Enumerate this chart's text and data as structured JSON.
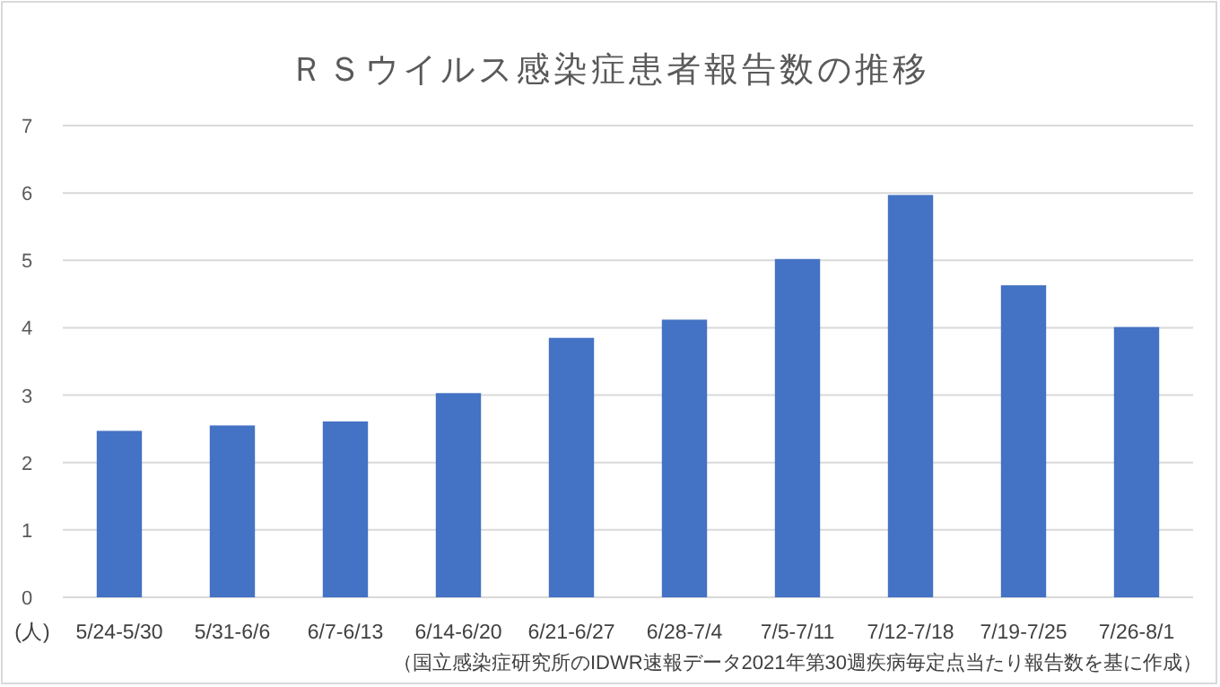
{
  "chart_data": {
    "type": "bar",
    "title": "ＲＳウイルス感染症患者報告数の推移",
    "ylabel": "(人)",
    "categories": [
      "5/24-5/30",
      "5/31-6/6",
      "6/7-6/13",
      "6/14-6/20",
      "6/21-6/27",
      "6/28-7/4",
      "7/5-7/11",
      "7/12-7/18",
      "7/19-7/25",
      "7/26-8/1"
    ],
    "values": [
      2.47,
      2.55,
      2.61,
      3.03,
      3.85,
      4.12,
      5.02,
      5.97,
      4.63,
      4.01
    ],
    "color": "#4472c4",
    "ylim": [
      0,
      7
    ],
    "yticks": [
      0,
      1,
      2,
      3,
      4,
      5,
      6,
      7
    ],
    "grid": "y",
    "annotations": [
      "（国立感染症研究所のIDWR速報データ2021年第30週疾病毎定点当たり報告数を基に作成）"
    ]
  }
}
